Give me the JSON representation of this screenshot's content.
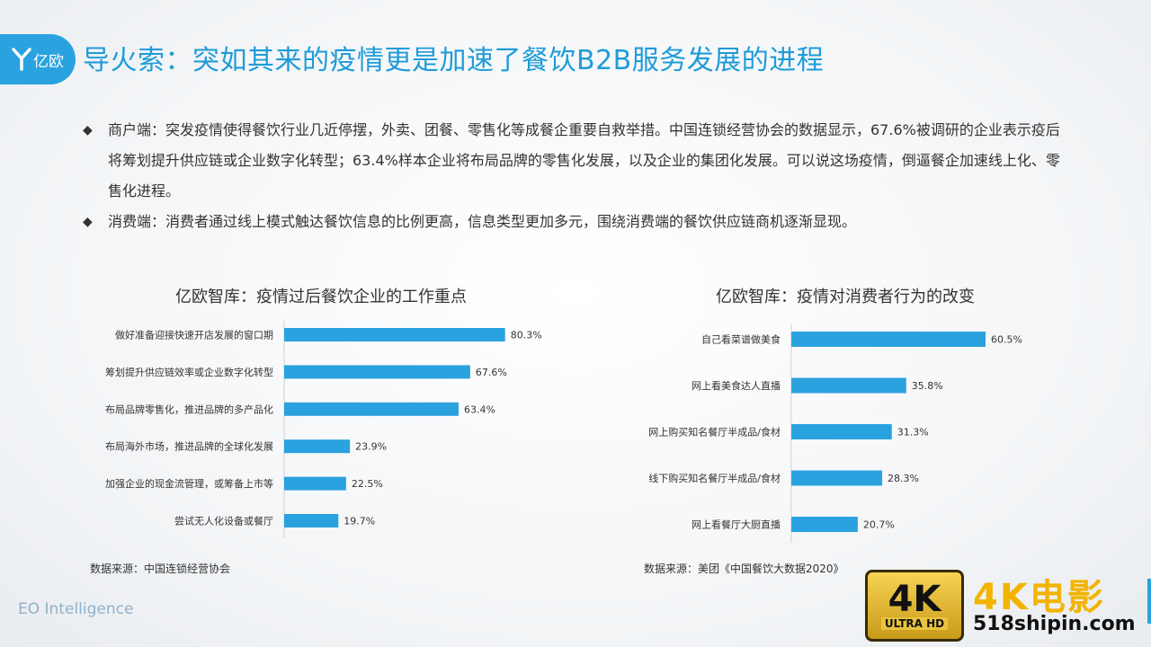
{
  "header": {
    "logo_text": "亿欧",
    "title": "导火索：突如其来的疫情更是加速了餐饮B2B服务发展的进程"
  },
  "bullets": [
    {
      "text": "商户端：突发疫情使得餐饮行业几近停摆，外卖、团餐、零售化等成餐企重要自救举措。中国连锁经营协会的数据显示，67.6%被调研的企业表示疫后将筹划提升供应链或企业数字化转型；63.4%样本企业将布局品牌的零售化发展，以及企业的集团化发展。可以说这场疫情，倒逼餐企加速线上化、零售化进程。"
    },
    {
      "text": "消费端：消费者通过线上模式触达餐饮信息的比例更高，信息类型更加多元，围绕消费端的餐饮供应链商机逐渐显现。"
    }
  ],
  "bullet_mark": "◆",
  "chart_data": [
    {
      "type": "bar",
      "orientation": "horizontal",
      "title": "亿欧智库：疫情过后餐饮企业的工作重点",
      "categories": [
        "做好准备迎接快速开店发展的窗口期",
        "筹划提升供应链效率或企业数字化转型",
        "布局品牌零售化，推进品牌的多产品化",
        "布局海外市场，推进品牌的全球化发展",
        "加强企业的现金流管理，或筹备上市等",
        "尝试无人化设备或餐厅"
      ],
      "values": [
        80.3,
        67.6,
        63.4,
        23.9,
        22.5,
        19.7
      ],
      "value_labels": [
        "80.3%",
        "67.6%",
        "63.4%",
        "23.9%",
        "22.5%",
        "19.7%"
      ],
      "unit": "%",
      "xlim": [
        0,
        100
      ],
      "color": "#2aa2e0",
      "source": "数据来源：中国连锁经营协会"
    },
    {
      "type": "bar",
      "orientation": "horizontal",
      "title": "亿欧智库：疫情对消费者行为的改变",
      "categories": [
        "自己看菜谱做美食",
        "网上看美食达人直播",
        "网上购买知名餐厅半成品/食材",
        "线下购买知名餐厅半成品/食材",
        "网上看餐厅大厨直播"
      ],
      "values": [
        60.5,
        35.8,
        31.3,
        28.3,
        20.7
      ],
      "value_labels": [
        "60.5%",
        "35.8%",
        "31.3%",
        "28.3%",
        "20.7%"
      ],
      "unit": "%",
      "xlim": [
        0,
        100
      ],
      "color": "#2aa2e0",
      "source": "数据来源：美团《中国餐饮大数据2020》"
    }
  ],
  "footer": {
    "text": "EO Intelligence"
  },
  "watermark": {
    "badge_big": "4K",
    "badge_small": "ULTRA HD",
    "name": "4K电影",
    "url": "518shipin.com"
  }
}
